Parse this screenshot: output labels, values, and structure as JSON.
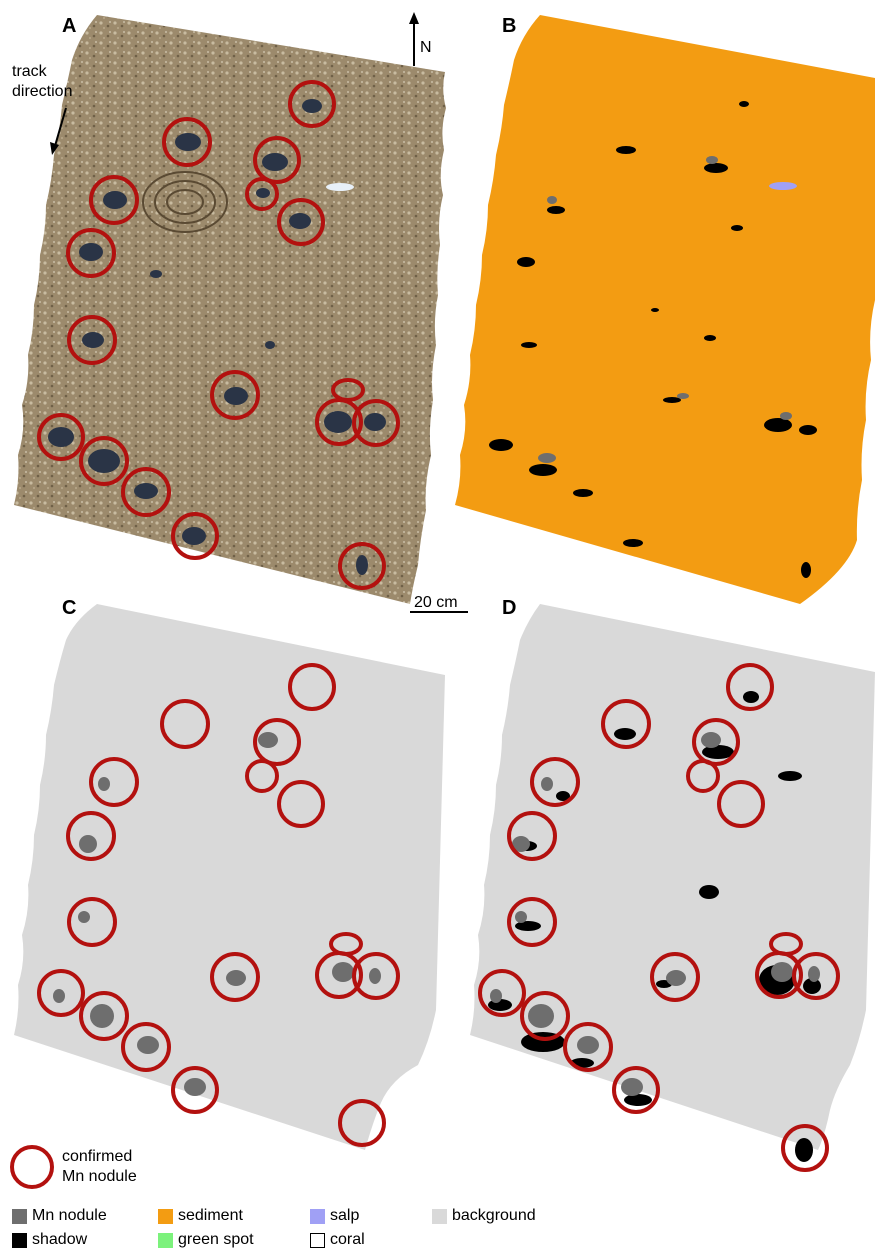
{
  "panels": {
    "a": {
      "label": "A"
    },
    "b": {
      "label": "B"
    },
    "c": {
      "label": "C"
    },
    "d": {
      "label": "D"
    }
  },
  "annotations": {
    "track_direction_line1": "track",
    "track_direction_line2": "direction",
    "north": "N",
    "scale_bar": "20 cm"
  },
  "confirmed_legend": {
    "line1": "confirmed",
    "line2": "Mn nodule"
  },
  "legend": [
    {
      "label": "Mn nodule",
      "color": "#6e6e6e"
    },
    {
      "label": "shadow",
      "color": "#000000"
    },
    {
      "label": "sediment",
      "color": "#f39c12"
    },
    {
      "label": "green spot",
      "color": "#7cf27c"
    },
    {
      "label": "salp",
      "color": "#a0a0f5"
    },
    {
      "label": "coral",
      "color": "#ffffff"
    },
    {
      "label": "background",
      "color": "#d9d9d9"
    }
  ],
  "colors": {
    "circle": "#b3110f",
    "background": "#d9d9d9",
    "sediment": "#f39c12",
    "nodule": "#6e6e6e",
    "shadow": "#000000",
    "seafloor": "#9a8566"
  }
}
